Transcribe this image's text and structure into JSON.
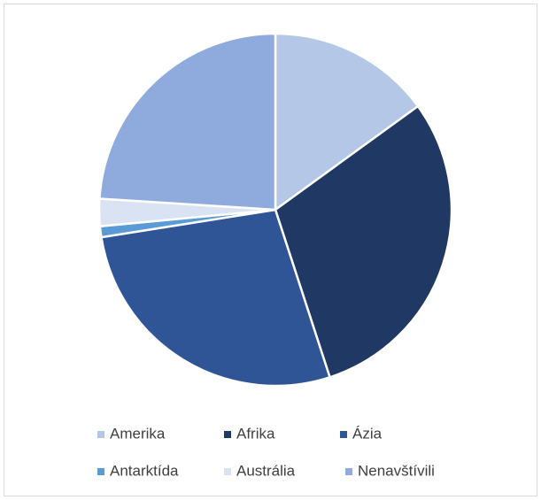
{
  "chart_data": {
    "type": "pie",
    "categories": [
      "Amerika",
      "Afrika",
      "Ázia",
      "Antarktída",
      "Austrália",
      "Nenavštívili"
    ],
    "values": [
      15,
      30,
      27.5,
      1,
      2.5,
      24
    ],
    "colors": [
      "#b4c7e7",
      "#203864",
      "#2f5597",
      "#5b9bd5",
      "#dae3f3",
      "#8faadc"
    ]
  }
}
